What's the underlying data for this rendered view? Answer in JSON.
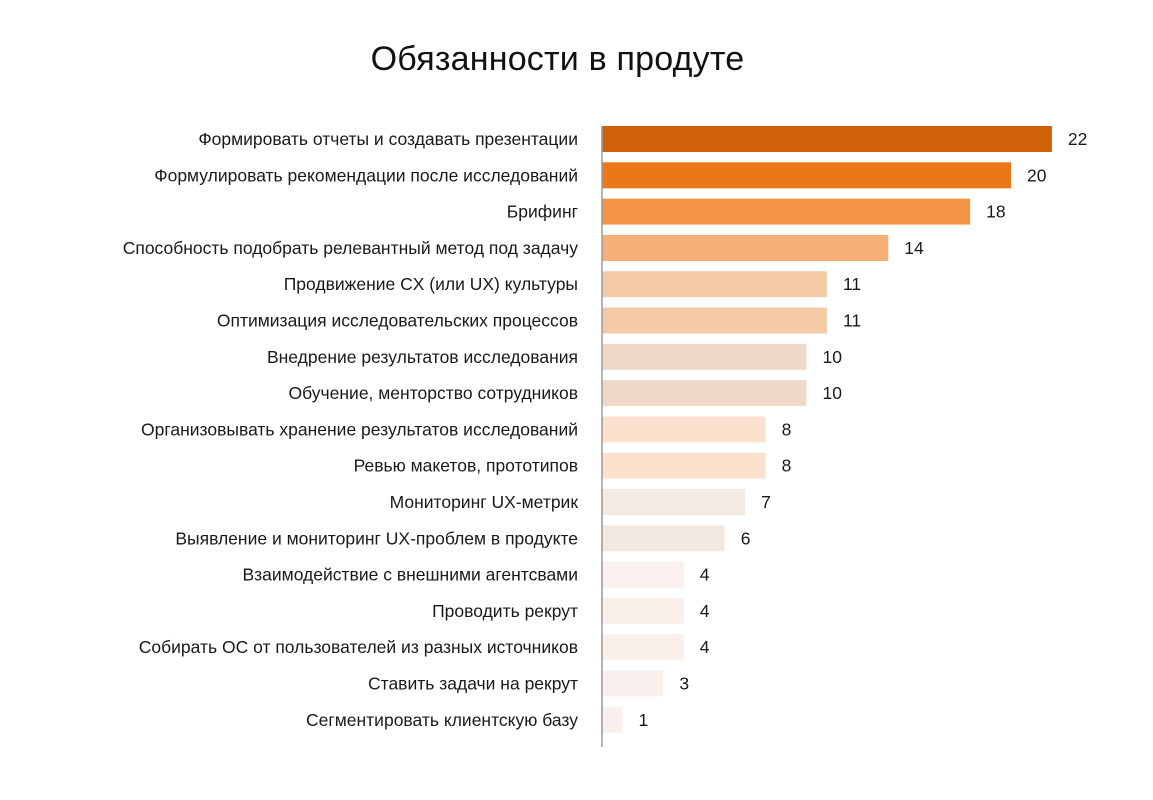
{
  "chart_data": {
    "type": "bar",
    "orientation": "horizontal",
    "title": "Обязанности в продуте",
    "xlabel": "",
    "ylabel": "",
    "grid": false,
    "legend": "none",
    "categories": [
      "Формировать отчеты и создавать презентации",
      "Формулировать рекомендации после исследований",
      "Брифинг",
      "Способность подобрать релевантный  метод под задачу",
      "Продвижение CX (или UX) культуры",
      "Оптимизация исследовательских процессов",
      "Внедрение результатов исследования",
      "Обучение, менторство сотрудников",
      "Организовывать хранение результатов исследований",
      "Ревью макетов, прототипов",
      "Мониторинг UX-метрик",
      "Выявление и мониторинг UX-проблем в продукте",
      "Взаимодействие с внешними агентсвами",
      "Проводить рекрут",
      "Собирать ОС от пользователей из разных источников",
      "Ставить задачи на рекрут",
      "Сегментировать клиентскую базу"
    ],
    "values": [
      22,
      20,
      18,
      14,
      11,
      11,
      10,
      10,
      8,
      8,
      7,
      6,
      4,
      4,
      4,
      3,
      1
    ],
    "colors": [
      "#CF6209",
      "#EB7718",
      "#F39447",
      "#F6AF77",
      "#F5CBA7",
      "#F4C9A6",
      "#EED8C7",
      "#EED9C9",
      "#FCE1CE",
      "#FCE1CE",
      "#F4EAE4",
      "#F3E8E1",
      "#FAF1EE",
      "#F9F0EC",
      "#F9F0EC",
      "#F8F0EC",
      "#F8F0EC"
    ],
    "axis_color": "#9a9a9a",
    "xlim": [
      0,
      22
    ]
  }
}
